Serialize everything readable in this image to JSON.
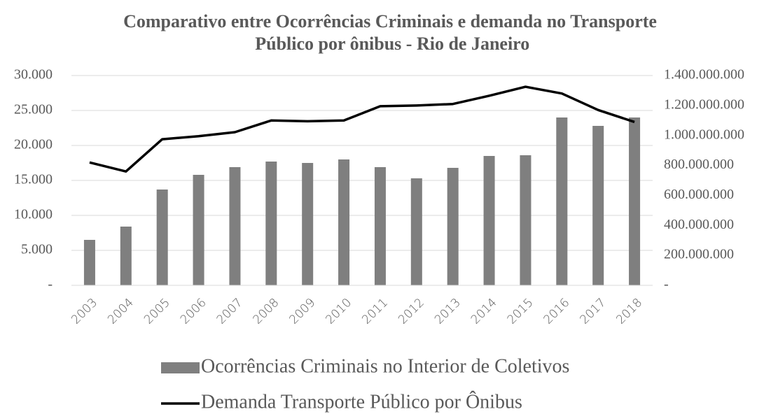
{
  "chart_data": {
    "type": "bar_line",
    "title": "Comparativo entre Ocorrências Criminais e demanda no Transporte Público por ônibus - Rio de Janeiro",
    "categories": [
      "2003",
      "2004",
      "2005",
      "2006",
      "2007",
      "2008",
      "2009",
      "2010",
      "2011",
      "2012",
      "2013",
      "2014",
      "2015",
      "2016",
      "2017",
      "2018"
    ],
    "series": [
      {
        "name": "Ocorrências Criminais no Interior de Coletivos",
        "type": "bar",
        "color": "#7f7f7f",
        "values": [
          6500,
          8400,
          13700,
          15800,
          16900,
          17700,
          17500,
          18000,
          16900,
          15300,
          16800,
          18500,
          18600,
          24000,
          22800,
          24000
        ]
      },
      {
        "name": "Demanda Transporte Público por Ônibus",
        "type": "line",
        "axis": "y2",
        "color": "#000000",
        "values": [
          820000000,
          760000000,
          975000000,
          995000000,
          1022000000,
          1100000000,
          1095000000,
          1100000000,
          1195000000,
          1200000000,
          1210000000,
          1265000000,
          1325000000,
          1280000000,
          1170000000,
          1090000000
        ]
      }
    ],
    "ylim": [
      0,
      30000
    ],
    "yticks": [
      {
        "value": 0,
        "label": "-"
      },
      {
        "value": 5000,
        "label": "5.000"
      },
      {
        "value": 10000,
        "label": "10.000"
      },
      {
        "value": 15000,
        "label": "15.000"
      },
      {
        "value": 20000,
        "label": "20.000"
      },
      {
        "value": 25000,
        "label": "25.000"
      },
      {
        "value": 30000,
        "label": "30.000"
      }
    ],
    "y2lim": [
      0,
      1400000000
    ],
    "y2ticks": [
      {
        "value": 0,
        "label": "-"
      },
      {
        "value": 200000000,
        "label": "200.000.000"
      },
      {
        "value": 400000000,
        "label": "400.000.000"
      },
      {
        "value": 600000000,
        "label": "600.000.000"
      },
      {
        "value": 800000000,
        "label": "800.000.000"
      },
      {
        "value": 1000000000,
        "label": "1.000.000.000"
      },
      {
        "value": 1200000000,
        "label": "1.200.000.000"
      },
      {
        "value": 1400000000,
        "label": "1.400.000.000"
      }
    ],
    "grid": true,
    "legend": "bottom"
  }
}
